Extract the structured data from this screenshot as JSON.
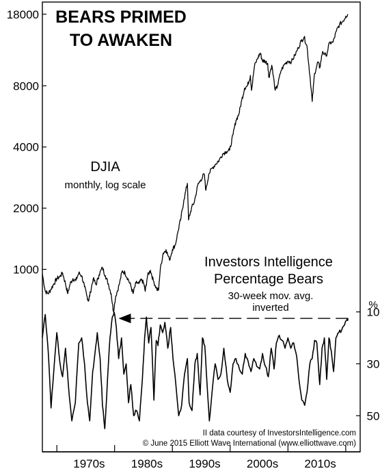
{
  "chart_data": [
    {
      "type": "line",
      "title": "BEARS PRIMED TO AWAKEN",
      "title_lines": [
        "BEARS PRIMED",
        "TO AWAKEN"
      ],
      "series_label": "DJIA",
      "series_sublabel": "monthly, log scale",
      "y_scale": "log",
      "ylim": [
        650,
        20500
      ],
      "y_ticks": [
        1000,
        2000,
        4000,
        8000,
        18000
      ],
      "y_tick_labels": [
        "1000",
        "2000",
        "4000",
        "8000",
        "18000"
      ],
      "xlim": [
        1962.5,
        2017.5
      ],
      "points": [
        [
          1962.5,
          950
        ],
        [
          1963.0,
          780
        ],
        [
          1963.5,
          760
        ],
        [
          1964.0,
          800
        ],
        [
          1964.5,
          850
        ],
        [
          1965.0,
          900
        ],
        [
          1965.5,
          920
        ],
        [
          1966.0,
          960
        ],
        [
          1966.5,
          850
        ],
        [
          1966.9,
          760
        ],
        [
          1967.3,
          850
        ],
        [
          1967.8,
          900
        ],
        [
          1968.3,
          880
        ],
        [
          1968.8,
          960
        ],
        [
          1969.3,
          930
        ],
        [
          1969.8,
          820
        ],
        [
          1970.2,
          740
        ],
        [
          1970.5,
          700
        ],
        [
          1970.8,
          770
        ],
        [
          1971.3,
          900
        ],
        [
          1971.8,
          840
        ],
        [
          1972.3,
          940
        ],
        [
          1972.9,
          1020
        ],
        [
          1973.4,
          930
        ],
        [
          1973.9,
          850
        ],
        [
          1974.4,
          760
        ],
        [
          1974.8,
          620
        ],
        [
          1975.2,
          740
        ],
        [
          1975.8,
          840
        ],
        [
          1976.3,
          980
        ],
        [
          1976.8,
          960
        ],
        [
          1977.3,
          900
        ],
        [
          1977.8,
          830
        ],
        [
          1978.2,
          760
        ],
        [
          1978.7,
          860
        ],
        [
          1979.2,
          850
        ],
        [
          1979.7,
          890
        ],
        [
          1980.1,
          840
        ],
        [
          1980.3,
          780
        ],
        [
          1980.7,
          930
        ],
        [
          1981.2,
          990
        ],
        [
          1981.7,
          880
        ],
        [
          1982.3,
          800
        ],
        [
          1982.6,
          790
        ],
        [
          1982.9,
          1000
        ],
        [
          1983.4,
          1200
        ],
        [
          1983.9,
          1250
        ],
        [
          1984.5,
          1110
        ],
        [
          1985.0,
          1250
        ],
        [
          1985.5,
          1320
        ],
        [
          1986.0,
          1550
        ],
        [
          1986.5,
          1800
        ],
        [
          1987.0,
          2200
        ],
        [
          1987.6,
          2650
        ],
        [
          1987.8,
          1750
        ],
        [
          1988.3,
          2000
        ],
        [
          1988.8,
          2150
        ],
        [
          1989.4,
          2600
        ],
        [
          1989.9,
          2750
        ],
        [
          1990.5,
          2950
        ],
        [
          1990.8,
          2450
        ],
        [
          1991.3,
          2950
        ],
        [
          1991.9,
          3150
        ],
        [
          1992.5,
          3300
        ],
        [
          1993.1,
          3450
        ],
        [
          1993.7,
          3700
        ],
        [
          1994.3,
          3800
        ],
        [
          1994.9,
          3850
        ],
        [
          1995.5,
          4600
        ],
        [
          1996.0,
          5400
        ],
        [
          1996.5,
          5800
        ],
        [
          1997.0,
          6800
        ],
        [
          1997.5,
          7800
        ],
        [
          1998.0,
          8000
        ],
        [
          1998.5,
          9000
        ],
        [
          1998.7,
          7600
        ],
        [
          1999.2,
          10000
        ],
        [
          1999.8,
          11000
        ],
        [
          2000.2,
          11600
        ],
        [
          2000.6,
          10600
        ],
        [
          2001.0,
          10600
        ],
        [
          2001.5,
          10300
        ],
        [
          2001.7,
          8800
        ],
        [
          2002.2,
          10100
        ],
        [
          2002.8,
          7600
        ],
        [
          2003.2,
          8000
        ],
        [
          2003.8,
          9500
        ],
        [
          2004.4,
          10200
        ],
        [
          2005.0,
          10600
        ],
        [
          2005.6,
          10500
        ],
        [
          2006.2,
          11300
        ],
        [
          2006.8,
          12300
        ],
        [
          2007.3,
          13300
        ],
        [
          2007.8,
          13900
        ],
        [
          2008.3,
          12500
        ],
        [
          2008.8,
          9000
        ],
        [
          2009.2,
          6700
        ],
        [
          2009.6,
          9200
        ],
        [
          2010.2,
          10500
        ],
        [
          2010.5,
          9800
        ],
        [
          2011.0,
          11800
        ],
        [
          2011.6,
          11200
        ],
        [
          2012.2,
          13000
        ],
        [
          2012.8,
          13100
        ],
        [
          2013.4,
          14900
        ],
        [
          2013.9,
          16000
        ],
        [
          2014.5,
          16600
        ],
        [
          2015.0,
          17600
        ],
        [
          2015.4,
          18000
        ]
      ]
    },
    {
      "type": "line",
      "series_label_lines": [
        "Investors Intelligence",
        "Percentage Bears"
      ],
      "series_sublabel_lines": [
        "30-week mov. avg.",
        "inverted"
      ],
      "y_inverted": true,
      "y_unit": "%",
      "ylim": [
        8,
        56
      ],
      "y_ticks": [
        10,
        30,
        50
      ],
      "y_tick_labels": [
        "10",
        "30",
        "50"
      ],
      "xlim": [
        1962.5,
        2017.5
      ],
      "reference_level": 12.5,
      "points": [
        [
          1962.5,
          20
        ],
        [
          1963.0,
          11
        ],
        [
          1963.5,
          25
        ],
        [
          1964.0,
          47
        ],
        [
          1964.5,
          32
        ],
        [
          1965.0,
          18
        ],
        [
          1965.5,
          29
        ],
        [
          1966.0,
          35
        ],
        [
          1966.5,
          24
        ],
        [
          1967.0,
          38
        ],
        [
          1967.6,
          52
        ],
        [
          1968.2,
          45
        ],
        [
          1968.8,
          22
        ],
        [
          1969.3,
          20
        ],
        [
          1969.8,
          30
        ],
        [
          1970.3,
          45
        ],
        [
          1970.7,
          52
        ],
        [
          1971.2,
          33
        ],
        [
          1971.6,
          26
        ],
        [
          1972.0,
          18
        ],
        [
          1972.5,
          28
        ],
        [
          1972.9,
          46
        ],
        [
          1973.3,
          55
        ],
        [
          1973.8,
          35
        ],
        [
          1974.2,
          20
        ],
        [
          1974.6,
          12
        ],
        [
          1974.9,
          10
        ],
        [
          1975.3,
          16
        ],
        [
          1975.7,
          28
        ],
        [
          1976.2,
          20
        ],
        [
          1976.6,
          34
        ],
        [
          1977.0,
          30
        ],
        [
          1977.4,
          45
        ],
        [
          1977.8,
          38
        ],
        [
          1978.3,
          50
        ],
        [
          1978.8,
          48
        ],
        [
          1979.3,
          52
        ],
        [
          1979.8,
          36
        ],
        [
          1980.2,
          20
        ],
        [
          1980.5,
          12
        ],
        [
          1980.9,
          22
        ],
        [
          1981.3,
          16
        ],
        [
          1981.8,
          44
        ],
        [
          1982.2,
          21
        ],
        [
          1982.5,
          23
        ],
        [
          1982.9,
          15
        ],
        [
          1983.3,
          18
        ],
        [
          1983.7,
          14
        ],
        [
          1984.2,
          24
        ],
        [
          1984.7,
          16
        ],
        [
          1985.1,
          28
        ],
        [
          1985.6,
          38
        ],
        [
          1986.1,
          50
        ],
        [
          1986.6,
          46
        ],
        [
          1987.1,
          34
        ],
        [
          1987.6,
          28
        ],
        [
          1987.9,
          45
        ],
        [
          1988.4,
          48
        ],
        [
          1988.9,
          30
        ],
        [
          1989.3,
          26
        ],
        [
          1989.8,
          42
        ],
        [
          1990.2,
          20
        ],
        [
          1990.6,
          23
        ],
        [
          1991.0,
          38
        ],
        [
          1991.4,
          52
        ],
        [
          1991.9,
          40
        ],
        [
          1992.4,
          30
        ],
        [
          1992.9,
          36
        ],
        [
          1993.4,
          34
        ],
        [
          1993.9,
          24
        ],
        [
          1994.5,
          36
        ],
        [
          1995.0,
          41
        ],
        [
          1995.5,
          30
        ],
        [
          1996.0,
          28
        ],
        [
          1996.6,
          32
        ],
        [
          1997.1,
          34
        ],
        [
          1997.6,
          26
        ],
        [
          1998.1,
          29
        ],
        [
          1998.6,
          33
        ],
        [
          1999.1,
          28
        ],
        [
          1999.6,
          31
        ],
        [
          2000.1,
          32
        ],
        [
          2000.6,
          26
        ],
        [
          2001.1,
          31
        ],
        [
          2001.6,
          35
        ],
        [
          2002.1,
          24
        ],
        [
          2002.6,
          32
        ],
        [
          2003.0,
          22
        ],
        [
          2003.5,
          19
        ],
        [
          2004.0,
          21
        ],
        [
          2004.5,
          24
        ],
        [
          2005.0,
          20
        ],
        [
          2005.5,
          24
        ],
        [
          2006.0,
          22
        ],
        [
          2006.5,
          27
        ],
        [
          2006.9,
          36
        ],
        [
          2007.4,
          44
        ],
        [
          2007.9,
          46
        ],
        [
          2008.3,
          41
        ],
        [
          2008.8,
          30
        ],
        [
          2009.2,
          28
        ],
        [
          2009.6,
          21
        ],
        [
          2010.0,
          22
        ],
        [
          2010.5,
          38
        ],
        [
          2010.9,
          24
        ],
        [
          2011.3,
          20
        ],
        [
          2011.7,
          36
        ],
        [
          2012.1,
          20
        ],
        [
          2012.5,
          25
        ],
        [
          2012.9,
          33
        ],
        [
          2013.3,
          20
        ],
        [
          2013.8,
          18
        ],
        [
          2014.3,
          17
        ],
        [
          2014.8,
          15
        ],
        [
          2015.2,
          13
        ],
        [
          2015.4,
          12.5
        ]
      ]
    }
  ],
  "x_axis": {
    "tick_years": [
      1965,
      1975,
      1985,
      1995,
      2005,
      2015
    ],
    "decade_labels": [
      {
        "label": "1970s",
        "year": 1970
      },
      {
        "label": "1980s",
        "year": 1980
      },
      {
        "label": "1990s",
        "year": 1990
      },
      {
        "label": "2000s",
        "year": 2000
      },
      {
        "label": "2010s",
        "year": 2010
      }
    ]
  },
  "credits": [
    "II data courtesy of InvestorsIntelligence.com",
    "© June 2015 Elliott Wave International (www.elliottwave.com)"
  ],
  "colors": {
    "line": "#000000",
    "background": "#ffffff",
    "frame": "#000000"
  }
}
